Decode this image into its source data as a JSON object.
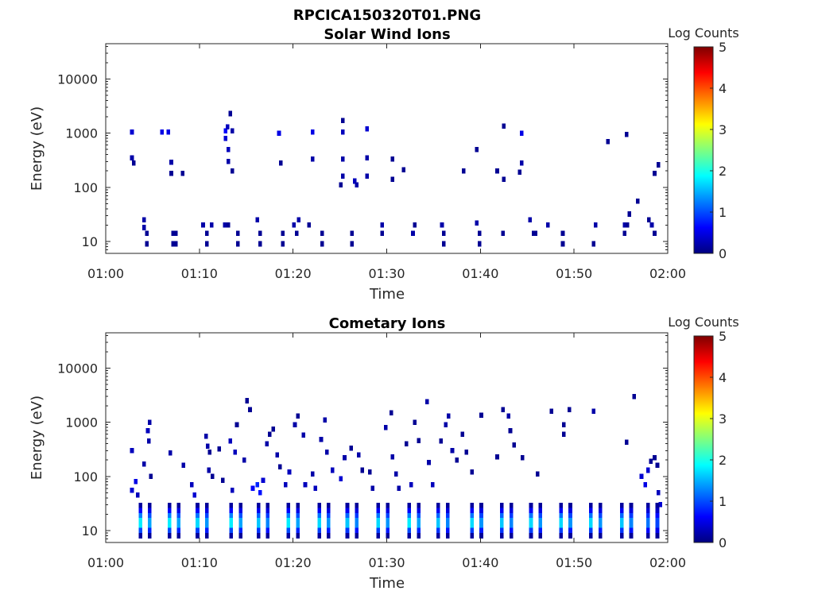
{
  "figure_title": "RPCICA150320T01.PNG",
  "colors": {
    "colormap": [
      "#00007f",
      "#0000ff",
      "#007fff",
      "#00ffff",
      "#7fff7f",
      "#ffff00",
      "#ff7f00",
      "#ff0000",
      "#7f0000"
    ]
  },
  "chart_data": [
    {
      "type": "heatmap",
      "title": "Solar Wind Ions",
      "xlabel": "Time",
      "ylabel": "Energy (eV)",
      "xlim": [
        "01:00",
        "02:00"
      ],
      "x_ticks": [
        "01:00",
        "01:10",
        "01:20",
        "01:30",
        "01:40",
        "01:50",
        "02:00"
      ],
      "ylim": [
        6,
        45000
      ],
      "y_scale": "log",
      "y_ticks": [
        10,
        100,
        1000,
        10000
      ],
      "y_tick_labels": [
        "10",
        "100",
        "1000",
        "10000"
      ],
      "colorbar": {
        "label": "Log Counts",
        "range": [
          0,
          5
        ],
        "ticks": [
          "0",
          "1",
          "2",
          "3",
          "4",
          "5"
        ]
      },
      "cells": [
        {
          "t": 2.8,
          "e": 1050,
          "v": 0.4
        },
        {
          "t": 2.8,
          "e": 350,
          "v": 0.2
        },
        {
          "t": 3.0,
          "e": 280,
          "v": 0.1
        },
        {
          "t": 4.1,
          "e": 25,
          "v": 0.2
        },
        {
          "t": 4.1,
          "e": 18,
          "v": 0.2
        },
        {
          "t": 4.4,
          "e": 14,
          "v": 0.1
        },
        {
          "t": 4.4,
          "e": 9,
          "v": 0.1
        },
        {
          "t": 6.0,
          "e": 1050,
          "v": 0.5
        },
        {
          "t": 6.7,
          "e": 1050,
          "v": 0.5
        },
        {
          "t": 7.0,
          "e": 290,
          "v": 0.2
        },
        {
          "t": 7.0,
          "e": 180,
          "v": 0.1
        },
        {
          "t": 7.2,
          "e": 14,
          "v": 0.1
        },
        {
          "t": 7.2,
          "e": 9,
          "v": 0.1
        },
        {
          "t": 7.5,
          "e": 14,
          "v": 0.1
        },
        {
          "t": 7.5,
          "e": 9,
          "v": 0.1
        },
        {
          "t": 8.2,
          "e": 180,
          "v": 0.1
        },
        {
          "t": 10.4,
          "e": 20,
          "v": 0.2
        },
        {
          "t": 10.8,
          "e": 14,
          "v": 0.1
        },
        {
          "t": 10.8,
          "e": 9,
          "v": 0.1
        },
        {
          "t": 11.3,
          "e": 20,
          "v": 0.2
        },
        {
          "t": 12.8,
          "e": 1100,
          "v": 0.6
        },
        {
          "t": 12.8,
          "e": 800,
          "v": 0.4
        },
        {
          "t": 13.0,
          "e": 1300,
          "v": 0.3
        },
        {
          "t": 13.1,
          "e": 500,
          "v": 0.3
        },
        {
          "t": 13.1,
          "e": 300,
          "v": 0.2
        },
        {
          "t": 13.3,
          "e": 2300,
          "v": 0.1
        },
        {
          "t": 13.5,
          "e": 1100,
          "v": 0.2
        },
        {
          "t": 13.5,
          "e": 200,
          "v": 0.1
        },
        {
          "t": 12.7,
          "e": 20,
          "v": 0.2
        },
        {
          "t": 13.1,
          "e": 20,
          "v": 0.1
        },
        {
          "t": 14.1,
          "e": 14,
          "v": 0.1
        },
        {
          "t": 14.1,
          "e": 9,
          "v": 0.1
        },
        {
          "t": 16.2,
          "e": 25,
          "v": 0.2
        },
        {
          "t": 16.5,
          "e": 14,
          "v": 0.1
        },
        {
          "t": 16.5,
          "e": 9,
          "v": 0.1
        },
        {
          "t": 18.5,
          "e": 1000,
          "v": 0.5
        },
        {
          "t": 18.7,
          "e": 280,
          "v": 0.1
        },
        {
          "t": 18.9,
          "e": 14,
          "v": 0.1
        },
        {
          "t": 18.9,
          "e": 9,
          "v": 0.1
        },
        {
          "t": 20.1,
          "e": 20,
          "v": 0.2
        },
        {
          "t": 20.4,
          "e": 14,
          "v": 0.1
        },
        {
          "t": 20.6,
          "e": 25,
          "v": 0.2
        },
        {
          "t": 21.7,
          "e": 20,
          "v": 0.1
        },
        {
          "t": 22.1,
          "e": 1050,
          "v": 0.5
        },
        {
          "t": 22.1,
          "e": 330,
          "v": 0.2
        },
        {
          "t": 23.1,
          "e": 14,
          "v": 0.1
        },
        {
          "t": 23.1,
          "e": 9,
          "v": 0.1
        },
        {
          "t": 25.3,
          "e": 1050,
          "v": 0.3
        },
        {
          "t": 25.3,
          "e": 1700,
          "v": 0.1
        },
        {
          "t": 25.3,
          "e": 330,
          "v": 0.2
        },
        {
          "t": 25.3,
          "e": 160,
          "v": 0.2
        },
        {
          "t": 25.1,
          "e": 110,
          "v": 0.1
        },
        {
          "t": 26.3,
          "e": 14,
          "v": 0.1
        },
        {
          "t": 26.3,
          "e": 9,
          "v": 0.1
        },
        {
          "t": 26.6,
          "e": 130,
          "v": 0.3
        },
        {
          "t": 26.8,
          "e": 110,
          "v": 0.2
        },
        {
          "t": 27.9,
          "e": 1200,
          "v": 0.4
        },
        {
          "t": 27.9,
          "e": 350,
          "v": 0.2
        },
        {
          "t": 27.9,
          "e": 160,
          "v": 0.2
        },
        {
          "t": 29.5,
          "e": 14,
          "v": 0.1
        },
        {
          "t": 29.5,
          "e": 20,
          "v": 0.2
        },
        {
          "t": 30.6,
          "e": 330,
          "v": 0.1
        },
        {
          "t": 30.6,
          "e": 140,
          "v": 0.1
        },
        {
          "t": 31.8,
          "e": 210,
          "v": 0.1
        },
        {
          "t": 32.8,
          "e": 14,
          "v": 0.2
        },
        {
          "t": 33.0,
          "e": 20,
          "v": 0.1
        },
        {
          "t": 35.9,
          "e": 20,
          "v": 0.2
        },
        {
          "t": 36.1,
          "e": 14,
          "v": 0.1
        },
        {
          "t": 36.1,
          "e": 9,
          "v": 0.1
        },
        {
          "t": 38.2,
          "e": 200,
          "v": 0.1
        },
        {
          "t": 39.6,
          "e": 500,
          "v": 0.1
        },
        {
          "t": 39.6,
          "e": 22,
          "v": 0.2
        },
        {
          "t": 39.9,
          "e": 14,
          "v": 0.1
        },
        {
          "t": 39.9,
          "e": 9,
          "v": 0.1
        },
        {
          "t": 42.5,
          "e": 1350,
          "v": 0.1
        },
        {
          "t": 41.8,
          "e": 200,
          "v": 0.1
        },
        {
          "t": 42.5,
          "e": 140,
          "v": 0.1
        },
        {
          "t": 42.4,
          "e": 14,
          "v": 0.1
        },
        {
          "t": 44.4,
          "e": 1000,
          "v": 0.5
        },
        {
          "t": 44.4,
          "e": 280,
          "v": 0.2
        },
        {
          "t": 44.2,
          "e": 190,
          "v": 0.1
        },
        {
          "t": 45.3,
          "e": 25,
          "v": 0.2
        },
        {
          "t": 45.7,
          "e": 14,
          "v": 0.1
        },
        {
          "t": 45.9,
          "e": 14,
          "v": 0.1
        },
        {
          "t": 47.2,
          "e": 20,
          "v": 0.2
        },
        {
          "t": 48.8,
          "e": 14,
          "v": 0.1
        },
        {
          "t": 48.8,
          "e": 9,
          "v": 0.1
        },
        {
          "t": 52.1,
          "e": 9,
          "v": 0.1
        },
        {
          "t": 52.3,
          "e": 20,
          "v": 0.2
        },
        {
          "t": 53.6,
          "e": 700,
          "v": 0.1
        },
        {
          "t": 55.6,
          "e": 950,
          "v": 0.1
        },
        {
          "t": 55.4,
          "e": 20,
          "v": 0.2
        },
        {
          "t": 55.4,
          "e": 14,
          "v": 0.1
        },
        {
          "t": 55.7,
          "e": 20,
          "v": 0.1
        },
        {
          "t": 55.9,
          "e": 32,
          "v": 0.1
        },
        {
          "t": 56.8,
          "e": 55,
          "v": 0.1
        },
        {
          "t": 58.0,
          "e": 25,
          "v": 0.1
        },
        {
          "t": 58.3,
          "e": 20,
          "v": 0.2
        },
        {
          "t": 58.6,
          "e": 14,
          "v": 0.1
        },
        {
          "t": 58.6,
          "e": 180,
          "v": 0.1
        },
        {
          "t": 59.0,
          "e": 260,
          "v": 0.1
        }
      ]
    },
    {
      "type": "heatmap",
      "title": "Cometary Ions",
      "xlabel": "Time",
      "ylabel": "Energy (eV)",
      "xlim": [
        "01:00",
        "02:00"
      ],
      "x_ticks": [
        "01:00",
        "01:10",
        "01:20",
        "01:30",
        "01:40",
        "01:50",
        "02:00"
      ],
      "ylim": [
        6,
        45000
      ],
      "y_scale": "log",
      "y_ticks": [
        10,
        100,
        1000,
        10000
      ],
      "y_tick_labels": [
        "10",
        "100",
        "1000",
        "10000"
      ],
      "colorbar": {
        "label": "Log Counts",
        "range": [
          0,
          5
        ],
        "ticks": [
          "0",
          "1",
          "2",
          "3",
          "4",
          "5"
        ]
      },
      "dense_columns": [
        {
          "t": 4.2,
          "peak": 1.8
        },
        {
          "t": 7.3,
          "peak": 1.8
        },
        {
          "t": 10.3,
          "peak": 1.7
        },
        {
          "t": 13.9,
          "peak": 1.8
        },
        {
          "t": 16.8,
          "peak": 1.6
        },
        {
          "t": 20.0,
          "peak": 1.8
        },
        {
          "t": 23.3,
          "peak": 1.7
        },
        {
          "t": 26.3,
          "peak": 1.6
        },
        {
          "t": 29.6,
          "peak": 1.7
        },
        {
          "t": 32.9,
          "peak": 1.8
        },
        {
          "t": 36.0,
          "peak": 1.6
        },
        {
          "t": 39.6,
          "peak": 1.7
        },
        {
          "t": 42.8,
          "peak": 1.6
        },
        {
          "t": 45.9,
          "peak": 1.7
        },
        {
          "t": 49.1,
          "peak": 1.7
        },
        {
          "t": 52.3,
          "peak": 1.7
        },
        {
          "t": 55.6,
          "peak": 1.6
        },
        {
          "t": 58.4,
          "peak": 1.2
        }
      ],
      "cells": [
        {
          "t": 2.8,
          "e": 300,
          "v": 0.3
        },
        {
          "t": 2.8,
          "e": 55,
          "v": 0.4
        },
        {
          "t": 3.2,
          "e": 80,
          "v": 0.5
        },
        {
          "t": 3.4,
          "e": 45,
          "v": 0.3
        },
        {
          "t": 4.1,
          "e": 170,
          "v": 0.2
        },
        {
          "t": 4.5,
          "e": 700,
          "v": 0.3
        },
        {
          "t": 4.7,
          "e": 1000,
          "v": 0.2
        },
        {
          "t": 4.6,
          "e": 450,
          "v": 0.2
        },
        {
          "t": 4.8,
          "e": 100,
          "v": 0.1
        },
        {
          "t": 6.9,
          "e": 270,
          "v": 0.2
        },
        {
          "t": 8.3,
          "e": 160,
          "v": 0.2
        },
        {
          "t": 9.2,
          "e": 70,
          "v": 0.3
        },
        {
          "t": 9.5,
          "e": 45,
          "v": 0.4
        },
        {
          "t": 10.7,
          "e": 550,
          "v": 0.2
        },
        {
          "t": 10.9,
          "e": 360,
          "v": 0.2
        },
        {
          "t": 11.0,
          "e": 130,
          "v": 0.2
        },
        {
          "t": 11.4,
          "e": 100,
          "v": 0.1
        },
        {
          "t": 11.1,
          "e": 280,
          "v": 0.1
        },
        {
          "t": 12.1,
          "e": 320,
          "v": 0.1
        },
        {
          "t": 12.5,
          "e": 85,
          "v": 0.1
        },
        {
          "t": 13.3,
          "e": 450,
          "v": 0.3
        },
        {
          "t": 13.8,
          "e": 280,
          "v": 0.3
        },
        {
          "t": 13.5,
          "e": 55,
          "v": 0.3
        },
        {
          "t": 14.0,
          "e": 900,
          "v": 0.1
        },
        {
          "t": 14.8,
          "e": 200,
          "v": 0.2
        },
        {
          "t": 15.1,
          "e": 2500,
          "v": 0.1
        },
        {
          "t": 15.4,
          "e": 1700,
          "v": 0.1
        },
        {
          "t": 15.7,
          "e": 60,
          "v": 0.6
        },
        {
          "t": 16.2,
          "e": 70,
          "v": 0.8
        },
        {
          "t": 16.5,
          "e": 50,
          "v": 0.7
        },
        {
          "t": 16.8,
          "e": 85,
          "v": 0.4
        },
        {
          "t": 17.2,
          "e": 400,
          "v": 0.2
        },
        {
          "t": 17.5,
          "e": 600,
          "v": 0.1
        },
        {
          "t": 17.9,
          "e": 750,
          "v": 0.1
        },
        {
          "t": 18.3,
          "e": 250,
          "v": 0.2
        },
        {
          "t": 18.6,
          "e": 150,
          "v": 0.1
        },
        {
          "t": 19.2,
          "e": 70,
          "v": 0.3
        },
        {
          "t": 19.6,
          "e": 120,
          "v": 0.3
        },
        {
          "t": 20.2,
          "e": 900,
          "v": 0.2
        },
        {
          "t": 20.5,
          "e": 1300,
          "v": 0.1
        },
        {
          "t": 21.1,
          "e": 580,
          "v": 0.2
        },
        {
          "t": 21.3,
          "e": 70,
          "v": 0.3
        },
        {
          "t": 22.1,
          "e": 110,
          "v": 0.2
        },
        {
          "t": 22.4,
          "e": 60,
          "v": 0.3
        },
        {
          "t": 23.0,
          "e": 480,
          "v": 0.2
        },
        {
          "t": 23.4,
          "e": 1100,
          "v": 0.2
        },
        {
          "t": 23.6,
          "e": 280,
          "v": 0.2
        },
        {
          "t": 24.2,
          "e": 130,
          "v": 0.3
        },
        {
          "t": 25.1,
          "e": 90,
          "v": 0.4
        },
        {
          "t": 25.5,
          "e": 220,
          "v": 0.2
        },
        {
          "t": 26.2,
          "e": 330,
          "v": 0.1
        },
        {
          "t": 27.0,
          "e": 250,
          "v": 0.2
        },
        {
          "t": 27.4,
          "e": 130,
          "v": 0.1
        },
        {
          "t": 28.2,
          "e": 120,
          "v": 0.1
        },
        {
          "t": 28.5,
          "e": 60,
          "v": 0.2
        },
        {
          "t": 29.9,
          "e": 800,
          "v": 0.2
        },
        {
          "t": 30.5,
          "e": 1500,
          "v": 0.1
        },
        {
          "t": 30.6,
          "e": 230,
          "v": 0.2
        },
        {
          "t": 31.0,
          "e": 110,
          "v": 0.2
        },
        {
          "t": 31.3,
          "e": 60,
          "v": 0.2
        },
        {
          "t": 32.1,
          "e": 400,
          "v": 0.1
        },
        {
          "t": 32.6,
          "e": 70,
          "v": 0.3
        },
        {
          "t": 33.0,
          "e": 1000,
          "v": 0.1
        },
        {
          "t": 33.4,
          "e": 460,
          "v": 0.1
        },
        {
          "t": 34.3,
          "e": 2400,
          "v": 0.2
        },
        {
          "t": 34.5,
          "e": 180,
          "v": 0.2
        },
        {
          "t": 34.9,
          "e": 70,
          "v": 0.3
        },
        {
          "t": 35.8,
          "e": 450,
          "v": 0.1
        },
        {
          "t": 36.3,
          "e": 900,
          "v": 0.2
        },
        {
          "t": 36.6,
          "e": 1300,
          "v": 0.2
        },
        {
          "t": 37.0,
          "e": 300,
          "v": 0.2
        },
        {
          "t": 37.5,
          "e": 200,
          "v": 0.1
        },
        {
          "t": 38.1,
          "e": 600,
          "v": 0.1
        },
        {
          "t": 38.5,
          "e": 280,
          "v": 0.1
        },
        {
          "t": 39.1,
          "e": 120,
          "v": 0.1
        },
        {
          "t": 40.1,
          "e": 1350,
          "v": 0.1
        },
        {
          "t": 41.8,
          "e": 230,
          "v": 0.1
        },
        {
          "t": 42.4,
          "e": 1700,
          "v": 0.1
        },
        {
          "t": 43.0,
          "e": 1300,
          "v": 0.2
        },
        {
          "t": 43.2,
          "e": 700,
          "v": 0.1
        },
        {
          "t": 43.6,
          "e": 380,
          "v": 0.1
        },
        {
          "t": 44.5,
          "e": 220,
          "v": 0.1
        },
        {
          "t": 46.1,
          "e": 110,
          "v": 0.1
        },
        {
          "t": 47.6,
          "e": 1600,
          "v": 0.1
        },
        {
          "t": 48.9,
          "e": 900,
          "v": 0.1
        },
        {
          "t": 48.9,
          "e": 600,
          "v": 0.1
        },
        {
          "t": 49.5,
          "e": 1700,
          "v": 0.1
        },
        {
          "t": 52.1,
          "e": 1600,
          "v": 0.2
        },
        {
          "t": 55.6,
          "e": 430,
          "v": 0.1
        },
        {
          "t": 56.4,
          "e": 3000,
          "v": 0.1
        },
        {
          "t": 57.2,
          "e": 100,
          "v": 0.4
        },
        {
          "t": 57.6,
          "e": 70,
          "v": 0.5
        },
        {
          "t": 57.9,
          "e": 130,
          "v": 0.4
        },
        {
          "t": 58.2,
          "e": 190,
          "v": 0.1
        },
        {
          "t": 58.6,
          "e": 220,
          "v": 0.1
        },
        {
          "t": 58.9,
          "e": 160,
          "v": 0.1
        },
        {
          "t": 59.0,
          "e": 50,
          "v": 0.3
        },
        {
          "t": 59.2,
          "e": 30,
          "v": 0.4
        }
      ]
    }
  ]
}
